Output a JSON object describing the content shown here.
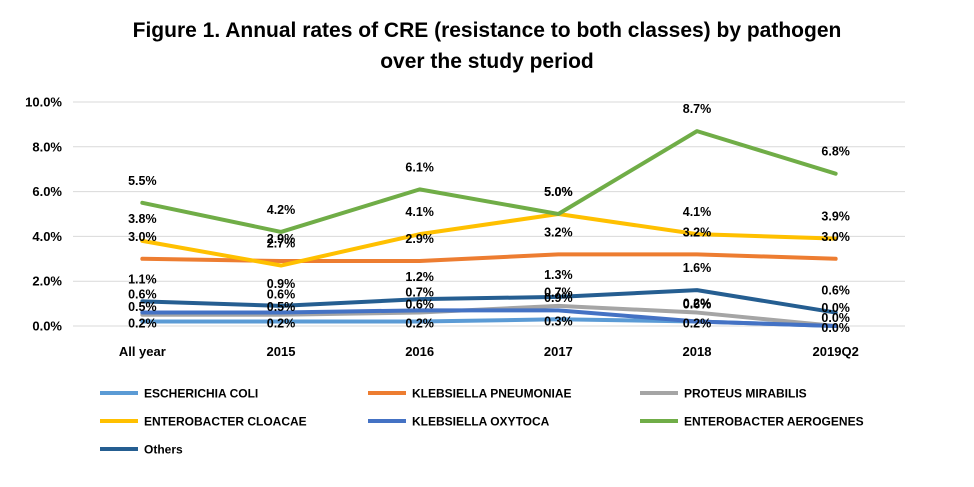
{
  "chart_data": {
    "type": "line",
    "title": "Figure 1. Annual rates of CRE (resistance to both classes) by pathogen",
    "subtitle": "over the study period",
    "xlabel": "",
    "ylabel": "",
    "ylim": [
      0,
      10
    ],
    "yticks": [
      "0.0%",
      "2.0%",
      "4.0%",
      "6.0%",
      "8.0%",
      "10.0%"
    ],
    "ytick_values": [
      0,
      2,
      4,
      6,
      8,
      10
    ],
    "grid": true,
    "legend_position": "bottom",
    "categories": [
      "All year",
      "2015",
      "2016",
      "2017",
      "2018",
      "2019Q2"
    ],
    "series": [
      {
        "name": "ESCHERICHIA COLI",
        "color": "#5B9BD5",
        "values": [
          0.2,
          0.2,
          0.2,
          0.3,
          0.2,
          0.0
        ],
        "labels": [
          "0.2%",
          "0.2%",
          "0.2%",
          "0.3%",
          "0.2%",
          "0.0%"
        ]
      },
      {
        "name": "KLEBSIELLA PNEUMONIAE",
        "color": "#ED7D31",
        "values": [
          3.0,
          2.9,
          2.9,
          3.2,
          3.2,
          3.0
        ],
        "labels": [
          "3.0%",
          "2.9%",
          "2.9%",
          "3.2%",
          "3.2%",
          "3.0%"
        ]
      },
      {
        "name": "PROTEUS MIRABILIS",
        "color": "#A5A5A5",
        "values": [
          0.5,
          0.5,
          0.6,
          0.9,
          0.6,
          0.0
        ],
        "labels": [
          "0.5%",
          "0.5%",
          "0.6%",
          "0.9%",
          "0.6%",
          "0.0%"
        ]
      },
      {
        "name": "ENTEROBACTER CLOACAE",
        "color": "#FFC000",
        "values": [
          3.8,
          2.7,
          4.1,
          5.0,
          4.1,
          3.9
        ],
        "labels": [
          "3.8%",
          "2.7%",
          "4.1%",
          "5.0%",
          "4.1%",
          "3.9%"
        ]
      },
      {
        "name": "KLEBSIELLA OXYTOCA",
        "color": "#4472C4",
        "values": [
          0.6,
          0.6,
          0.7,
          0.7,
          0.2,
          0.0
        ],
        "labels": [
          "0.6%",
          "0.6%",
          "0.7%",
          "0.7%",
          "0.2%",
          "0.0%"
        ]
      },
      {
        "name": "ENTEROBACTER AEROGENES",
        "color": "#70AD47",
        "values": [
          5.5,
          4.2,
          6.1,
          5.0,
          8.7,
          6.8
        ],
        "labels": [
          "5.5%",
          "4.2%",
          "6.1%",
          "5.0%",
          "8.7%",
          "6.8%"
        ]
      },
      {
        "name": "Others",
        "color": "#255E91",
        "values": [
          1.1,
          0.9,
          1.2,
          1.3,
          1.6,
          0.6
        ],
        "labels": [
          "1.1%",
          "0.9%",
          "1.2%",
          "1.3%",
          "1.6%",
          "0.6%"
        ]
      }
    ]
  }
}
